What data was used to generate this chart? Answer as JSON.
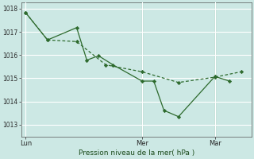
{
  "background_color": "#cce8e4",
  "grid_color": "#ffffff",
  "line_color": "#2d6a2d",
  "marker_color": "#2d6a2d",
  "xlabel": "Pression niveau de la mer( hPa )",
  "ylim": [
    1012.5,
    1018.25
  ],
  "yticks": [
    1013,
    1014,
    1015,
    1016,
    1017,
    1018
  ],
  "xtick_labels": [
    "Lun",
    "Mer",
    "Mar"
  ],
  "xtick_positions": [
    0.0,
    8.0,
    13.0
  ],
  "xlim": [
    -0.3,
    15.5
  ],
  "line1_x": [
    0,
    1.5,
    3.5,
    4.2,
    5.0,
    6.0,
    8.0,
    8.8,
    9.5,
    10.5,
    13.0,
    14.0
  ],
  "line1_y": [
    1017.82,
    1016.65,
    1017.18,
    1015.78,
    1015.97,
    1015.58,
    1014.88,
    1014.88,
    1013.62,
    1013.35,
    1015.08,
    1014.88
  ],
  "line2_x": [
    0,
    1.5,
    3.5,
    5.5,
    8.0,
    10.5,
    13.0,
    14.8
  ],
  "line2_y": [
    1017.82,
    1016.65,
    1016.58,
    1015.58,
    1015.28,
    1014.82,
    1015.05,
    1015.28
  ],
  "vline_positions": [
    8.0,
    13.0
  ],
  "figsize": [
    3.2,
    2.0
  ],
  "dpi": 100
}
